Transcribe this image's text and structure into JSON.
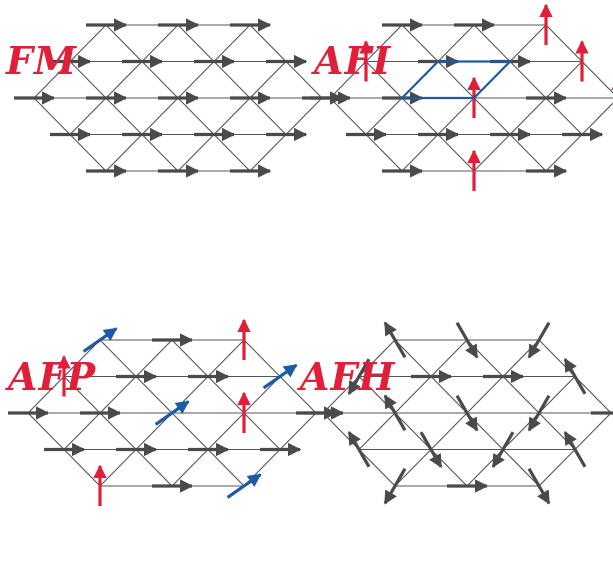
{
  "panels": [
    {
      "id": "fm",
      "label": "FM",
      "label_color": "#e0203a"
    },
    {
      "id": "afi",
      "label": "AFI",
      "label_color": "#e0203a"
    },
    {
      "id": "afp",
      "label": "AFP",
      "label_color": "#e0203a"
    },
    {
      "id": "afh",
      "label": "AFH",
      "label_color": "#e0203a"
    }
  ],
  "colors": {
    "lattice_line": "#555555",
    "spin_gray": "#4a4a4a",
    "spin_red": "#e0203a",
    "spin_blue": "#1f5aa6",
    "unit_cell": "#1f5aa6"
  }
}
